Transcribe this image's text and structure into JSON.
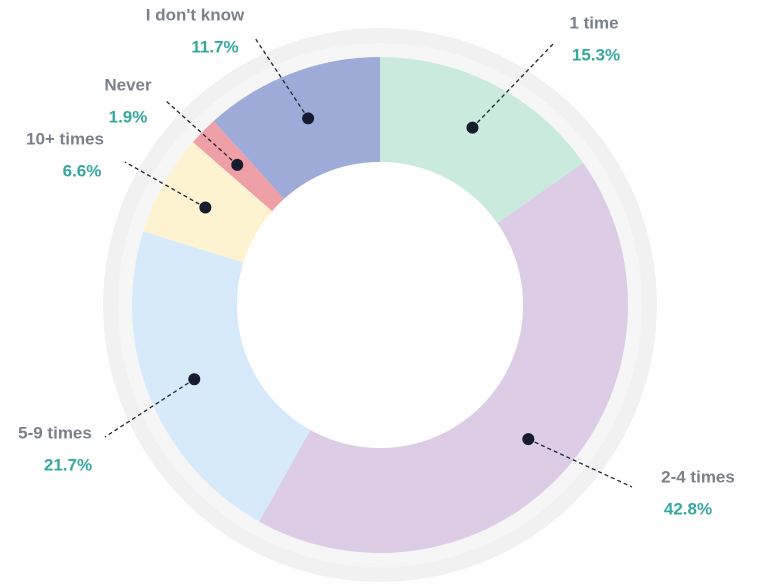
{
  "chart_data": {
    "type": "pie",
    "donut": true,
    "categories": [
      "1 time",
      "2-4 times",
      "5-9 times",
      "10+ times",
      "Never",
      "I don't know"
    ],
    "values": [
      15.3,
      42.8,
      21.7,
      6.6,
      1.9,
      11.7
    ],
    "value_labels": [
      "15.3%",
      "42.8%",
      "21.7%",
      "6.6%",
      "1.9%",
      "11.7%"
    ],
    "colors": [
      "#c9eadc",
      "#dccce5",
      "#d7eafb",
      "#fdf3d1",
      "#ef9fa6",
      "#9eaad8"
    ]
  }
}
